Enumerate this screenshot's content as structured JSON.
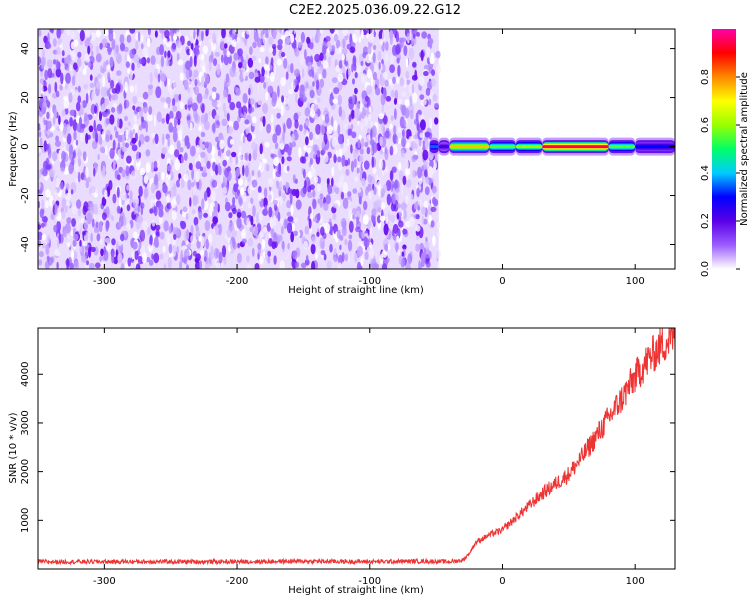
{
  "title": "C2E2.2025.036.09.22.G12",
  "chart_data": [
    {
      "type": "heatmap",
      "title": "C2E2.2025.036.09.22.G12",
      "xlabel": "Height of straight line (km)",
      "ylabel": "Frequency (Hz)",
      "xlim": [
        -350,
        130
      ],
      "ylim": [
        -50,
        48
      ],
      "xticks": [
        -300,
        -200,
        -100,
        0,
        100
      ],
      "yticks": [
        -40,
        -20,
        0,
        20,
        40
      ],
      "colorbar": {
        "label": "Normalized spectral amplitude",
        "range": [
          0.0,
          1.0
        ],
        "ticks": [
          "0.0",
          "0.2",
          "0.4",
          "0.6",
          "0.8"
        ],
        "colormap": [
          "#ffffff",
          "#9b5cff",
          "#5a00e6",
          "#0000ff",
          "#00ccff",
          "#00ff66",
          "#99ff00",
          "#ffff00",
          "#ff8800",
          "#ff0000",
          "#ff00aa"
        ]
      },
      "noise_region_x": [
        -350,
        -48
      ],
      "ridge": {
        "frequency": 0,
        "segments": [
          {
            "x": [
              -55,
              -48
            ],
            "peak": 0.35
          },
          {
            "x": [
              -48,
              -40
            ],
            "peak": 0.22
          },
          {
            "x": [
              -40,
              -10
            ],
            "peak": 0.75
          },
          {
            "x": [
              -10,
              10
            ],
            "peak": 0.55
          },
          {
            "x": [
              10,
              30
            ],
            "peak": 0.6
          },
          {
            "x": [
              30,
              80
            ],
            "peak": 0.95
          },
          {
            "x": [
              80,
              100
            ],
            "peak": 0.55
          },
          {
            "x": [
              100,
              130
            ],
            "peak": 0.3
          }
        ]
      },
      "grid": false
    },
    {
      "type": "line",
      "xlabel": "Height of straight line (km)",
      "ylabel": "SNR (10 * v/v)",
      "xlim": [
        -350,
        130
      ],
      "ylim": [
        0,
        4950
      ],
      "xticks": [
        -300,
        -200,
        -100,
        0,
        100
      ],
      "yticks": [
        1000,
        2000,
        3000,
        4000
      ],
      "line_color": "#ee3333",
      "series": [
        {
          "x": [
            -350,
            -300,
            -250,
            -200,
            -150,
            -100,
            -60,
            -40,
            -30,
            -25,
            -20,
            -10,
            0,
            10,
            20,
            30,
            40,
            50,
            60,
            70,
            80,
            90,
            100,
            110,
            120,
            130
          ],
          "values": [
            150,
            150,
            150,
            150,
            160,
            150,
            160,
            150,
            180,
            320,
            550,
            700,
            800,
            1050,
            1300,
            1550,
            1750,
            1950,
            2300,
            2700,
            3100,
            3500,
            3950,
            4300,
            4600,
            4800
          ]
        }
      ],
      "grid": false
    }
  ]
}
